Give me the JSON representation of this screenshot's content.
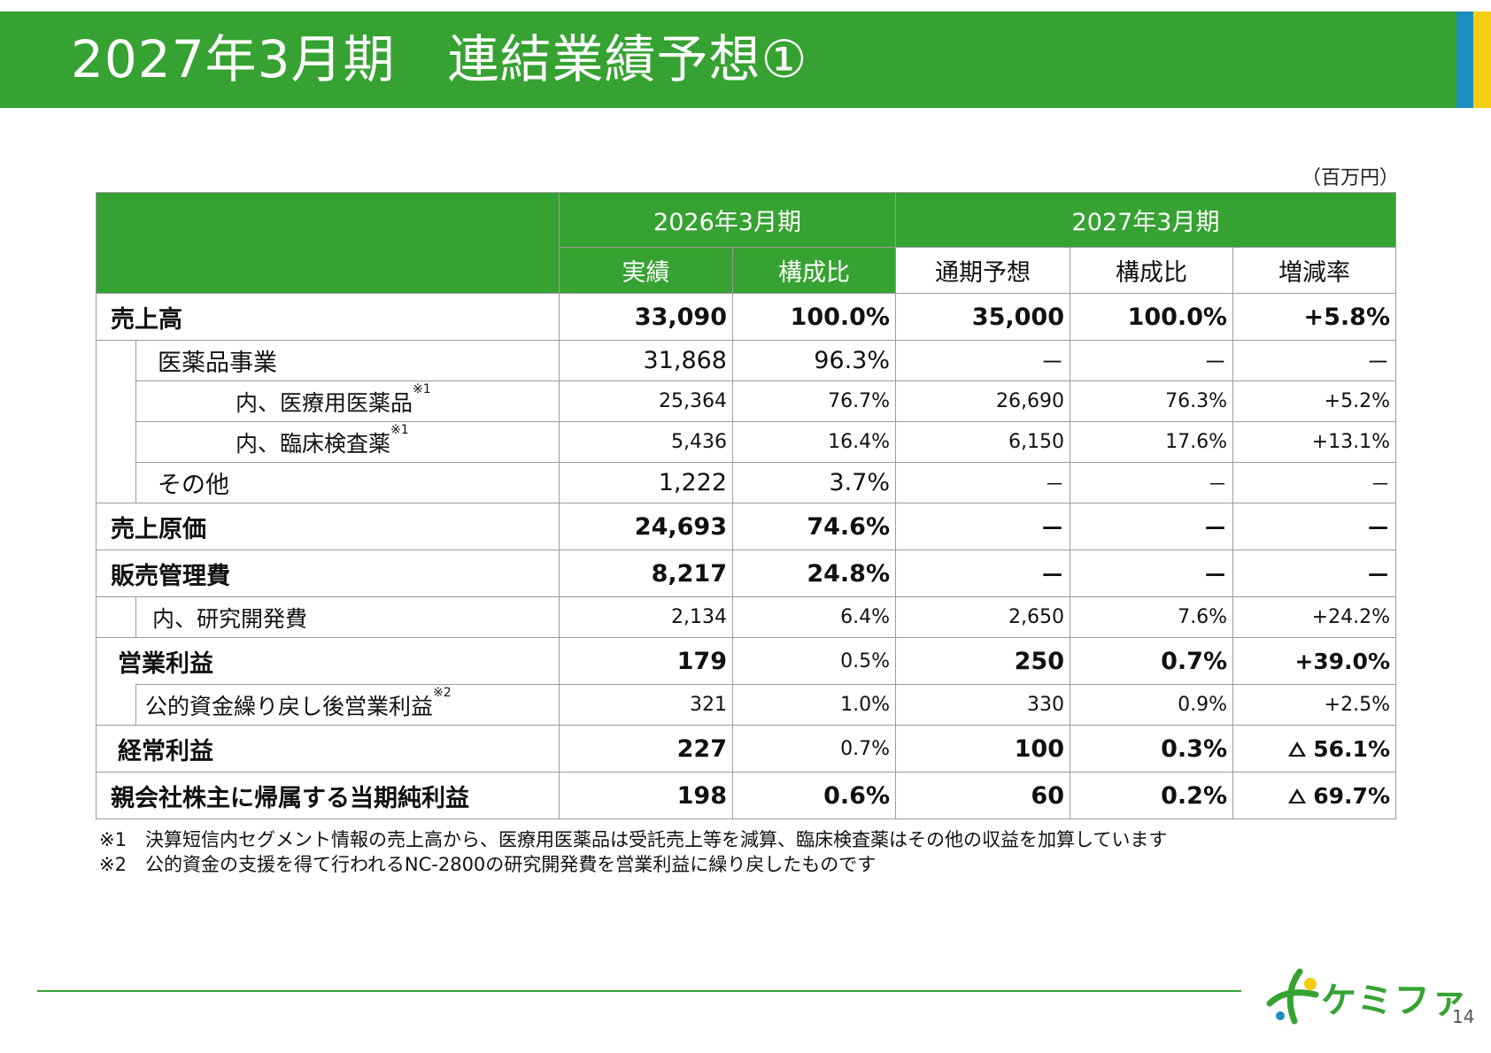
{
  "header": {
    "title": "2027年3月期　連結業績予想①"
  },
  "unit": "（百万円）",
  "table": {
    "group_2026": "2026年3月期",
    "group_2027": "2027年3月期",
    "col_actual": "実績",
    "col_ratio_2026": "構成比",
    "col_forecast": "通期予想",
    "col_ratio_2027": "構成比",
    "col_change": "増減率",
    "rows": [
      {
        "label": "売上高",
        "actual": "33,090",
        "ratio26": "100.0%",
        "forecast": "35,000",
        "ratio27": "100.0%",
        "change": "+5.8%"
      },
      {
        "label": "医薬品事業",
        "actual": "31,868",
        "ratio26": "96.3%",
        "forecast": "－",
        "ratio27": "－",
        "change": "－"
      },
      {
        "label": "内、医療用医薬品",
        "sup": "※1",
        "actual": "25,364",
        "ratio26": "76.7%",
        "forecast": "26,690",
        "ratio27": "76.3%",
        "change": "+5.2%"
      },
      {
        "label": "内、臨床検査薬",
        "sup": "※1",
        "actual": "5,436",
        "ratio26": "16.4%",
        "forecast": "6,150",
        "ratio27": "17.6%",
        "change": "+13.1%"
      },
      {
        "label": "その他",
        "actual": "1,222",
        "ratio26": "3.7%",
        "forecast": "－",
        "ratio27": "－",
        "change": "－"
      },
      {
        "label": "売上原価",
        "actual": "24,693",
        "ratio26": "74.6%",
        "forecast": "－",
        "ratio27": "－",
        "change": "－"
      },
      {
        "label": "販売管理費",
        "actual": "8,217",
        "ratio26": "24.8%",
        "forecast": "－",
        "ratio27": "－",
        "change": "－"
      },
      {
        "label": "内、研究開発費",
        "actual": "2,134",
        "ratio26": "6.4%",
        "forecast": "2,650",
        "ratio27": "7.6%",
        "change": "+24.2%"
      },
      {
        "label": "営業利益",
        "actual": "179",
        "ratio26": "0.5%",
        "forecast": "250",
        "ratio27": "0.7%",
        "change": "+39.0%"
      },
      {
        "label": "公的資金繰り戻し後営業利益",
        "sup": "※2",
        "actual": "321",
        "ratio26": "1.0%",
        "forecast": "330",
        "ratio27": "0.9%",
        "change": "+2.5%"
      },
      {
        "label": "経常利益",
        "actual": "227",
        "ratio26": "0.7%",
        "forecast": "100",
        "ratio27": "0.3%",
        "change": "56.1%"
      },
      {
        "label": "親会社株主に帰属する当期純利益",
        "actual": "198",
        "ratio26": "0.6%",
        "forecast": "60",
        "ratio27": "0.2%",
        "change": "69.7%"
      }
    ]
  },
  "notes": [
    "※1　決算短信内セグメント情報の売上高から、医療用医薬品は受託売上等を減算、臨床検査薬はその他の収益を加算しています",
    "※2　公的資金の支援を得て行われるNC-2800の研究開発費を営業利益に繰り戻したものです"
  ],
  "logo": {
    "text": "ケミファ"
  },
  "page_number": "14",
  "colors": {
    "brand_green": "#36a232",
    "stripe_blue": "#1a8fc1",
    "stripe_yellow": "#f6cc14"
  }
}
